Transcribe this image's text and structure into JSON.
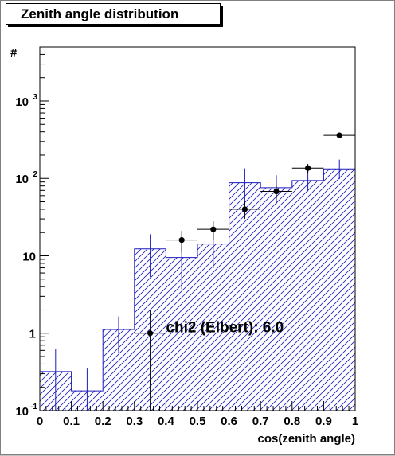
{
  "chart_data": {
    "type": "bar",
    "title": "Zenith angle distribution",
    "xlabel": "cos(zenith angle)",
    "ylabel": "#",
    "xlim": [
      0,
      1
    ],
    "ylim": [
      0.1,
      5000
    ],
    "yscale": "log",
    "x_ticks": [
      "0",
      "0.1",
      "0.2",
      "0.3",
      "0.4",
      "0.5",
      "0.6",
      "0.7",
      "0.8",
      "0.9",
      "1"
    ],
    "y_ticks": [
      {
        "base": "10",
        "exp": "-1",
        "value": 0.1
      },
      {
        "base": "1",
        "exp": "",
        "value": 1
      },
      {
        "base": "10",
        "exp": "",
        "value": 10
      },
      {
        "base": "10",
        "exp": "2",
        "value": 100
      },
      {
        "base": "10",
        "exp": "3",
        "value": 1000
      }
    ],
    "bin_edges": [
      0,
      0.1,
      0.2,
      0.3,
      0.4,
      0.5,
      0.6,
      0.7,
      0.8,
      0.9,
      1.0
    ],
    "series": [
      {
        "style": "hatched-histogram",
        "color": "#1b1bbd",
        "values": [
          0.32,
          0.18,
          1.12,
          12.3,
          9.5,
          14.2,
          88,
          76,
          94,
          133
        ],
        "errors": [
          [
            0.1,
            0.63
          ],
          [
            0.1,
            0.35
          ],
          [
            0.56,
            1.65
          ],
          [
            5.3,
            19
          ],
          [
            3.7,
            17
          ],
          [
            6.9,
            22
          ],
          [
            46,
            135
          ],
          [
            47,
            110
          ],
          [
            68,
            125
          ],
          [
            98,
            175
          ]
        ]
      },
      {
        "style": "points",
        "color": "#000000",
        "values": [
          null,
          null,
          null,
          1.0,
          16,
          22,
          40,
          68,
          136,
          360
        ],
        "errors": [
          null,
          null,
          null,
          [
            0.1,
            2.0
          ],
          [
            11,
            21
          ],
          [
            16,
            28
          ],
          [
            30,
            50
          ],
          [
            54,
            82
          ],
          [
            118,
            154
          ],
          [
            340,
            380
          ]
        ]
      }
    ],
    "annotation": "chi2 (Elbert): 6.0",
    "grid": false,
    "legend": "none"
  }
}
